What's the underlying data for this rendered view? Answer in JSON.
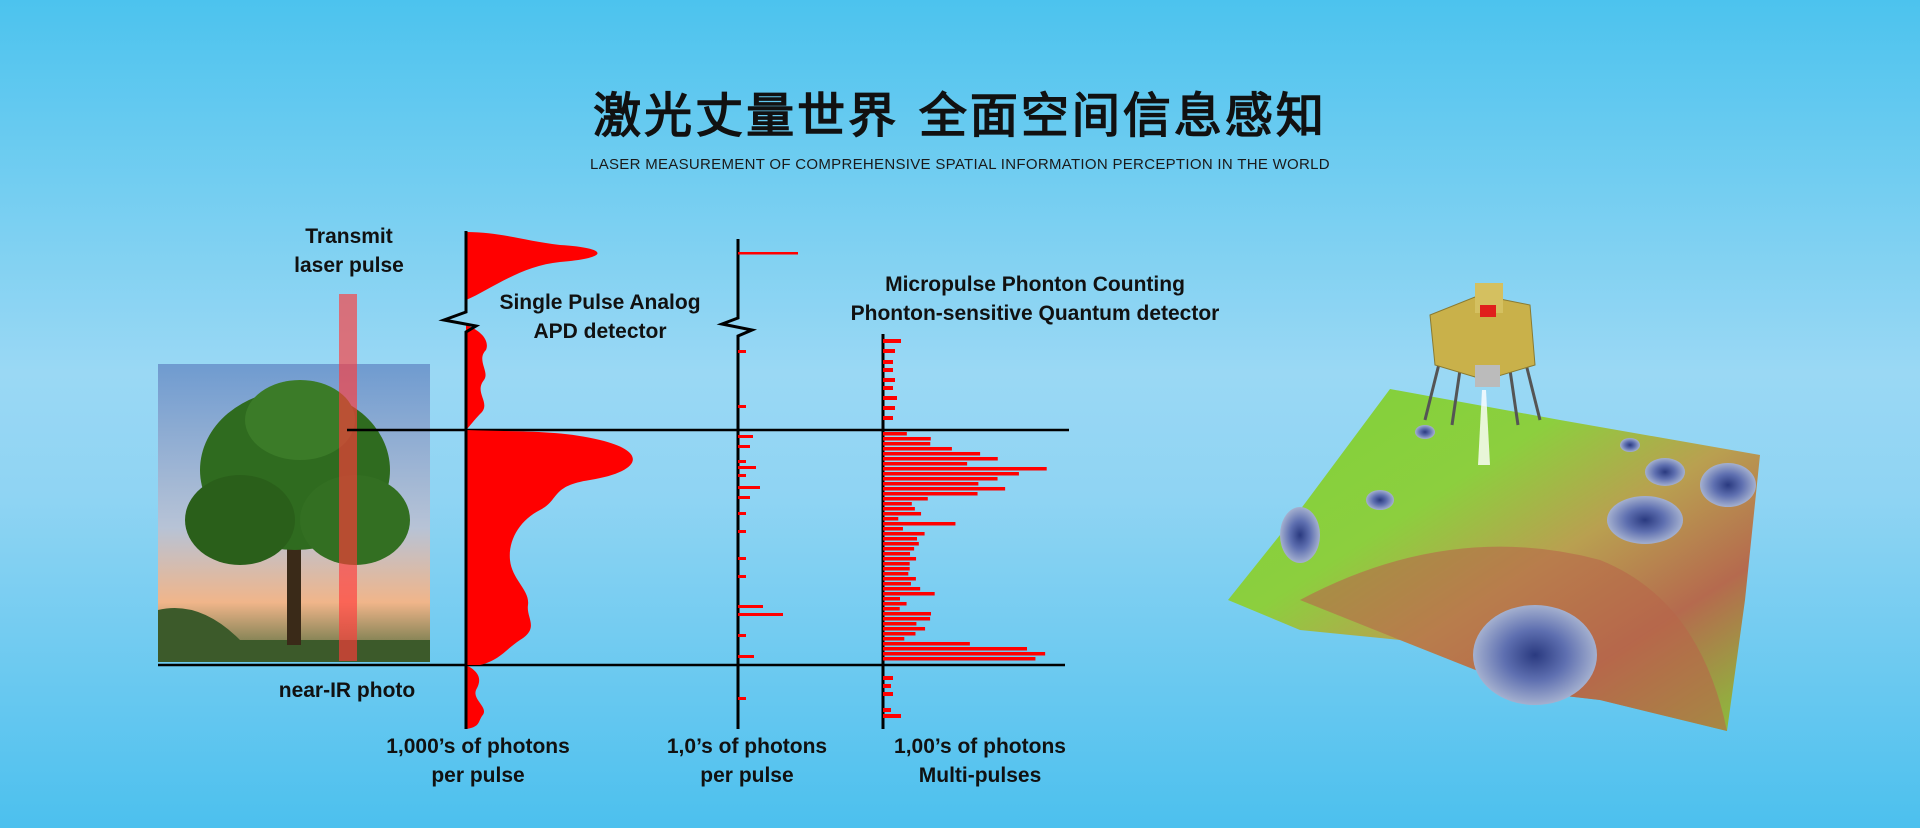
{
  "header": {
    "title": "激光丈量世界 全面空间信息感知",
    "subtitle": "LASER MEASUREMENT OF COMPREHENSIVE SPATIAL INFORMATION PERCEPTION IN THE WORLD"
  },
  "diagram": {
    "transmit_label": [
      "Transmit",
      "laser pulse"
    ],
    "photo_label": "near-IR photo",
    "apd_label": [
      "Single Pulse Analog",
      "APD detector"
    ],
    "quantum_label": [
      "Micropulse Phonton Counting",
      "Phonton-sensitive Quantum detector"
    ],
    "axis_labels": [
      [
        "1,000’s of photons",
        "per pulse"
      ],
      [
        "1,0’s of photons",
        "per pulse"
      ],
      [
        "1,00’s of photons",
        "Multi-pulses"
      ]
    ],
    "colors": {
      "signal": "#ff0000",
      "beam": "#ff6060",
      "axis": "#000000"
    }
  },
  "illustration": {
    "icon": "lunar-lander-on-terrain-map",
    "flag_color": "#e0201c"
  }
}
